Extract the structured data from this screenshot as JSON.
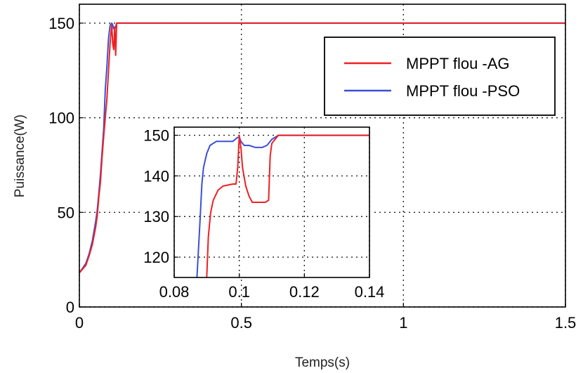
{
  "chart_data": [
    {
      "type": "line",
      "xlabel": "Temps(s)",
      "ylabel": "Puissance(W)",
      "xlim": [
        0,
        1.5
      ],
      "ylim": [
        0,
        160
      ],
      "xticks": [
        0,
        0.5,
        1,
        1.5
      ],
      "xtick_labels": [
        "0",
        "0.5",
        "1",
        "1.5"
      ],
      "yticks": [
        0,
        50,
        100,
        150
      ],
      "ytick_labels": [
        "0",
        "50",
        "100",
        "150"
      ],
      "grid": true,
      "legend_position": "top-right",
      "series": [
        {
          "name": "MPPT flou -AG",
          "color": "#ee2024",
          "x": [
            0,
            0.02,
            0.03,
            0.04,
            0.05,
            0.055,
            0.06,
            0.065,
            0.07,
            0.075,
            0.08,
            0.085,
            0.09,
            0.095,
            0.1,
            0.103,
            0.106,
            0.109,
            0.112,
            0.115,
            0.2,
            0.6,
            1.0,
            1.5
          ],
          "y": [
            18,
            22,
            27,
            33,
            42,
            48,
            58,
            66,
            79,
            90,
            100,
            110,
            125,
            140,
            149,
            139,
            136,
            148,
            133,
            150,
            150,
            150,
            150,
            150
          ]
        },
        {
          "name": "MPPT flou -PSO",
          "color": "#3b50d6",
          "x": [
            0,
            0.02,
            0.03,
            0.04,
            0.05,
            0.055,
            0.06,
            0.065,
            0.07,
            0.075,
            0.08,
            0.085,
            0.09,
            0.095,
            0.1,
            0.103,
            0.106,
            0.109,
            0.112,
            0.115,
            0.2,
            0.6,
            1.0,
            1.5
          ],
          "y": [
            18,
            23,
            28,
            35,
            45,
            51,
            60,
            70,
            82,
            94,
            115,
            127,
            142,
            149,
            150,
            149,
            147,
            147,
            148,
            150,
            150,
            150,
            150,
            150
          ]
        }
      ]
    },
    {
      "type": "line",
      "inset": true,
      "xlim": [
        0.08,
        0.14
      ],
      "ylim": [
        115,
        152
      ],
      "xticks": [
        0.08,
        0.1,
        0.12,
        0.14
      ],
      "xtick_labels": [
        "0.08",
        "0.1",
        "0.12",
        "0.14"
      ],
      "yticks": [
        120,
        130,
        140,
        150
      ],
      "ytick_labels": [
        "120",
        "130",
        "140",
        "150"
      ],
      "grid": true,
      "series": [
        {
          "name": "MPPT flou -AG",
          "color": "#ee2024",
          "x": [
            0.09,
            0.0905,
            0.0912,
            0.092,
            0.0935,
            0.095,
            0.098,
            0.099,
            0.0995,
            0.1,
            0.1005,
            0.101,
            0.102,
            0.103,
            0.104,
            0.106,
            0.108,
            0.109,
            0.1095,
            0.11,
            0.111,
            0.112,
            0.114,
            0.14
          ],
          "y": [
            115,
            125,
            131,
            134,
            136.5,
            137.5,
            138,
            138,
            142,
            150,
            147,
            142,
            137.5,
            135,
            133.5,
            133.5,
            133.5,
            134,
            145,
            148,
            149,
            150,
            150,
            150
          ]
        },
        {
          "name": "MPPT flou -PSO",
          "color": "#3b50d6",
          "x": [
            0.087,
            0.088,
            0.0885,
            0.089,
            0.09,
            0.091,
            0.093,
            0.096,
            0.098,
            0.0995,
            0.1,
            0.1005,
            0.1015,
            0.103,
            0.105,
            0.107,
            0.1085,
            0.109,
            0.11,
            0.111,
            0.112,
            0.14
          ],
          "y": [
            115,
            130,
            138,
            142,
            145.5,
            147.5,
            148.5,
            148.5,
            148.5,
            149.5,
            149.5,
            148.5,
            147.5,
            147.5,
            147,
            147,
            147.5,
            148,
            149,
            149.5,
            150,
            150
          ]
        }
      ]
    }
  ]
}
